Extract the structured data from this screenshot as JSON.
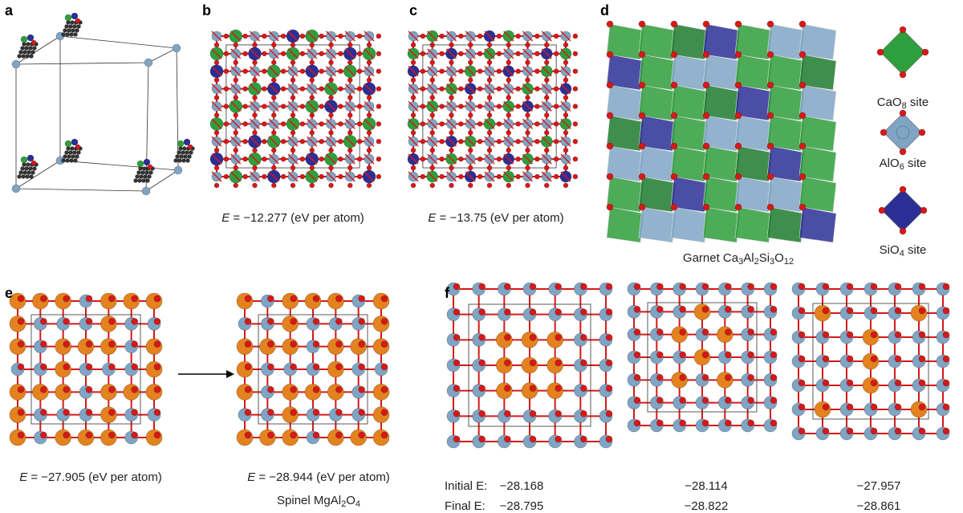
{
  "panels": {
    "a": {
      "label": "a"
    },
    "b": {
      "label": "b",
      "energy": {
        "symbol": "E",
        "text": " = −12.277 (eV per atom)"
      }
    },
    "c": {
      "label": "c",
      "energy": {
        "symbol": "E",
        "text": " = −13.75 (eV per atom)"
      }
    },
    "d": {
      "label": "d",
      "caption": [
        "Garnet Ca",
        "3",
        "Al",
        "2",
        "Si",
        "3",
        "O",
        "12"
      ],
      "legend": [
        [
          "CaO",
          "8",
          " site"
        ],
        [
          "AlO",
          "6",
          " site"
        ],
        [
          "SiO",
          "4",
          " site"
        ]
      ]
    },
    "e": {
      "label": "e",
      "left": {
        "symbol": "E",
        "text": " = −27.905 (eV per atom)"
      },
      "right": {
        "symbol": "E",
        "text": " = −28.944 (eV per atom)"
      },
      "caption": [
        "Spinel MgAl",
        "2",
        "O",
        "4"
      ]
    },
    "f": {
      "label": "f",
      "initial_label": "Initial E:",
      "final_label": "Final E:",
      "initial": [
        "−28.168",
        "−28.114",
        "−27.957"
      ],
      "final": [
        "−28.795",
        "−28.822",
        "−28.861"
      ]
    }
  }
}
